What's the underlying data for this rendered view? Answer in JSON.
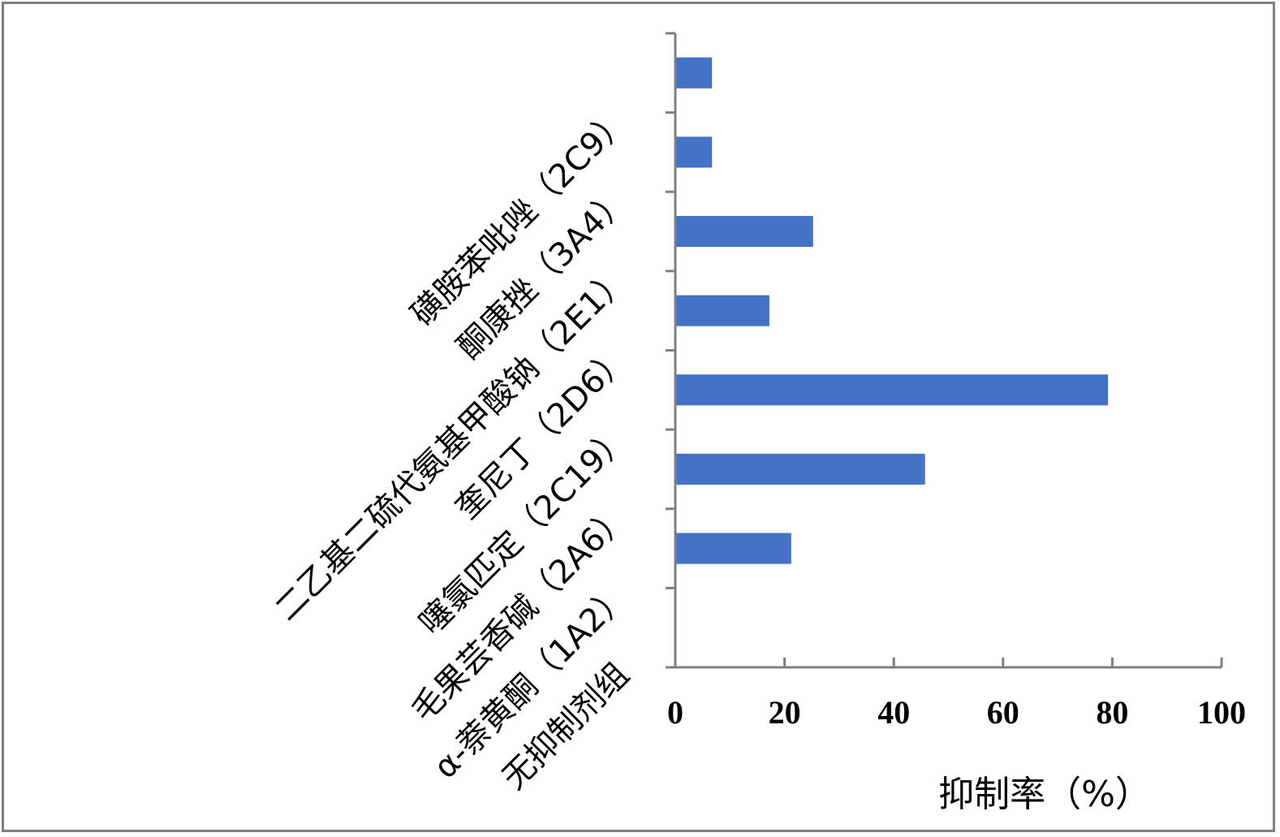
{
  "chart_data": {
    "type": "bar",
    "orientation": "horizontal",
    "categories": [
      "磺胺苯吡唑（2C9）",
      "酮康挫（3A4）",
      "二乙基二硫代氨基甲酸钠（2E1）",
      "奎尼丁（2D6）",
      "噻氯匹定（2C19）",
      "毛果芸香碱（2A6）",
      "α-萘黄酮（1A2）",
      "无抑制剂组"
    ],
    "values": [
      6.5,
      6.5,
      25,
      17,
      79,
      45.5,
      21,
      0
    ],
    "title": "",
    "xlabel": "抑制率（%）",
    "ylabel": "",
    "xlim": [
      0,
      100
    ],
    "xticks": [
      0,
      20,
      40,
      60,
      80,
      100
    ],
    "bar_color": "#4472c4",
    "axis_color": "#7f7f7f",
    "grid": false,
    "legend": "none"
  }
}
